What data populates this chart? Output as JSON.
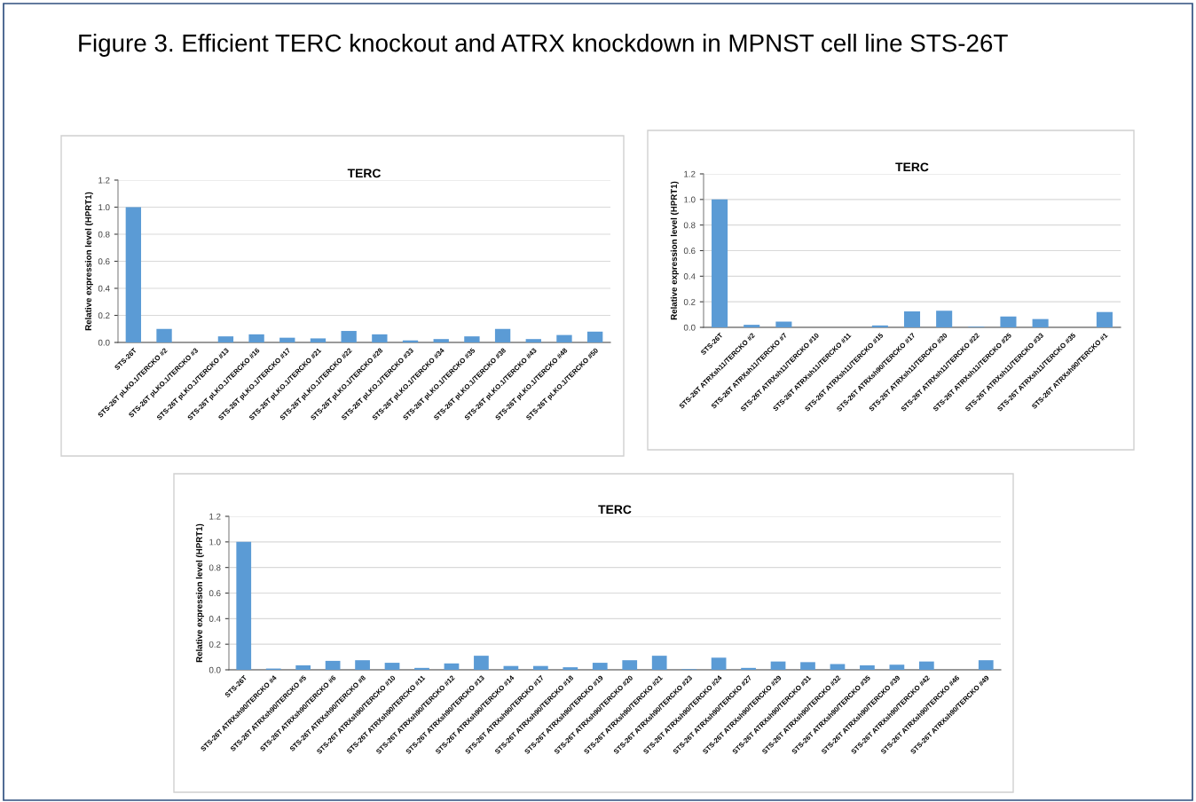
{
  "chart_data": [
    {
      "type": "bar",
      "title": "TERC",
      "ylabel": "Relative expression level (HPRT1)",
      "annotations": [
        "Figure 3. Efficient TERC knockout and ATRX knockdown in MPNST cell line STS-26T"
      ],
      "categories": [
        "STS-26T",
        "STS-26T pLKO.1/TERCKO #2",
        "STS-26T pLKO.1/TERCKO #3",
        "STS-26T pLKO.1/TERCKO #13",
        "STS-26T pLKO.1/TERCKO #16",
        "STS-26T pLKO.1/TERCKO #17",
        "STS-26T pLKO.1/TERCKO #21",
        "STS-26T pLKO.1/TERCKO #22",
        "STS-26T pLKO.1/TERCKO #28",
        "STS-26T pLKO.1/TERCKO #33",
        "STS-26T pLKO.1/TERCKO #34",
        "STS-26T pLKO.1/TERCKO #35",
        "STS-26T pLKO.1/TERCKO #38",
        "STS-26T pLKO.1/TERCKO #43",
        "STS-26T pLKO.1/TERCKO #48",
        "STS-26T pLKO.1/TERCKO #50"
      ],
      "values": [
        1.0,
        0.1,
        0,
        0.045,
        0.06,
        0.035,
        0.03,
        0.085,
        0.06,
        0.015,
        0.025,
        0.045,
        0.1,
        0.025,
        0.055,
        0.08
      ],
      "color": "#5b9bd5",
      "ylim": [
        0,
        1.2
      ],
      "yticks": [
        {
          "value": 0,
          "label": "0.0"
        },
        {
          "value": 0.2,
          "label": "0.2"
        },
        {
          "value": 0.4,
          "label": "0.4"
        },
        {
          "value": 0.6,
          "label": "0.6"
        },
        {
          "value": 0.8,
          "label": "0.8"
        },
        {
          "value": 1,
          "label": "1.0"
        },
        {
          "value": 1.2,
          "label": "1.2"
        }
      ],
      "grid": "y",
      "legend": false
    },
    {
      "type": "bar",
      "title": "TERC",
      "ylabel": "Relative expression level (HPRT1)",
      "categories": [
        "STS-26T",
        "STS-26T ATRXsh11/TERCKO #2",
        "STS-26T ATRXsh11/TERCKO #7",
        "STS-26T ATRXsh11/TERCKO #10",
        "STS-26T ATRXsh11/TERCKO #11",
        "STS-26T ATRXsh11/TERCKO #15",
        "STS-26T ATRXsh90/TERCKO #17",
        "STS-26T ATRXsh11/TERCKO #20",
        "STS-26T ATRXsh11/TERCKO #22",
        "STS-26T ATRXsh11/TERCKO #25",
        "STS-26T ATRXsh11/TERCKO #33",
        "STS-26T ATRXsh11/TERCKO #35",
        "STS-26T ATRXsh90/TERCKO #1"
      ],
      "values": [
        1.0,
        0.02,
        0.045,
        0,
        0,
        0.015,
        0.125,
        0.13,
        0.005,
        0.085,
        0.065,
        0,
        0.12
      ],
      "color": "#5b9bd5",
      "ylim": [
        0,
        1.2
      ],
      "yticks": [
        {
          "value": 0,
          "label": "0.0"
        },
        {
          "value": 0.2,
          "label": "0.2"
        },
        {
          "value": 0.4,
          "label": "0.4"
        },
        {
          "value": 0.6,
          "label": "0.6"
        },
        {
          "value": 0.8,
          "label": "0.8"
        },
        {
          "value": 1,
          "label": "1.0"
        },
        {
          "value": 1.2,
          "label": "1.2"
        }
      ],
      "grid": "y",
      "legend": false
    },
    {
      "type": "bar",
      "title": "TERC",
      "ylabel": "Relative expression level (HPRT1)",
      "categories": [
        "STS-26T",
        "STS-26T ATRXsh90/TERCKO #4",
        "STS-26T ATRXsh90/TERCKO #5",
        "STS-26T ATRXsh90/TERCKO #6",
        "STS-26T ATRXsh90/TERCKO #8",
        "STS-26T ATRXsh90/TERCKO #10",
        "STS-26T ATRXsh90/TERCKO #11",
        "STS-26T ATRXsh90/TERCKO #12",
        "STS-26T ATRXsh90/TERCKO #13",
        "STS-26T ATRXsh90/TERCKO #14",
        "STS-26T ATRXsh90/TERCKO #17",
        "STS-26T ATRXsh90/TERCKO #18",
        "STS-26T ATRXsh90/TERCKO #19",
        "STS-26T ATRXsh90/TERCKO #20",
        "STS-26T ATRXsh90/TERCKO #21",
        "STS-26T ATRXsh90/TERCKO #23",
        "STS-26T ATRXsh90/TERCKO #24",
        "STS-26T ATRXsh90/TERCKO #27",
        "STS-26T ATRXsh90/TERCKO #29",
        "STS-26T ATRXsh90/TERCKO #31",
        "STS-26T ATRXsh90/TERCKO #32",
        "STS-26T ATRXsh90/TERCKO #35",
        "STS-26T ATRXsh90/TERCKO #39",
        "STS-26T ATRXsh90/TERCKO #42",
        "STS-26T ATRXsh90/TERCKO #46",
        "STS-26T ATRXsh90/TERCKO #49"
      ],
      "values": [
        1.0,
        0.01,
        0.035,
        0.07,
        0.075,
        0.055,
        0.015,
        0.05,
        0.11,
        0.03,
        0.03,
        0.02,
        0.055,
        0.075,
        0.11,
        0.005,
        0.095,
        0.015,
        0.065,
        0.06,
        0.045,
        0.035,
        0.04,
        0.065,
        0,
        0.075
      ],
      "color": "#5b9bd5",
      "ylim": [
        0,
        1.2
      ],
      "yticks": [
        {
          "value": 0,
          "label": "0.0"
        },
        {
          "value": 0.2,
          "label": "0.2"
        },
        {
          "value": 0.4,
          "label": "0.4"
        },
        {
          "value": 0.6,
          "label": "0.6"
        },
        {
          "value": 0.8,
          "label": "0.8"
        },
        {
          "value": 1,
          "label": "1.0"
        },
        {
          "value": 1.2,
          "label": "1.2"
        }
      ],
      "grid": "y",
      "legend": false
    }
  ]
}
